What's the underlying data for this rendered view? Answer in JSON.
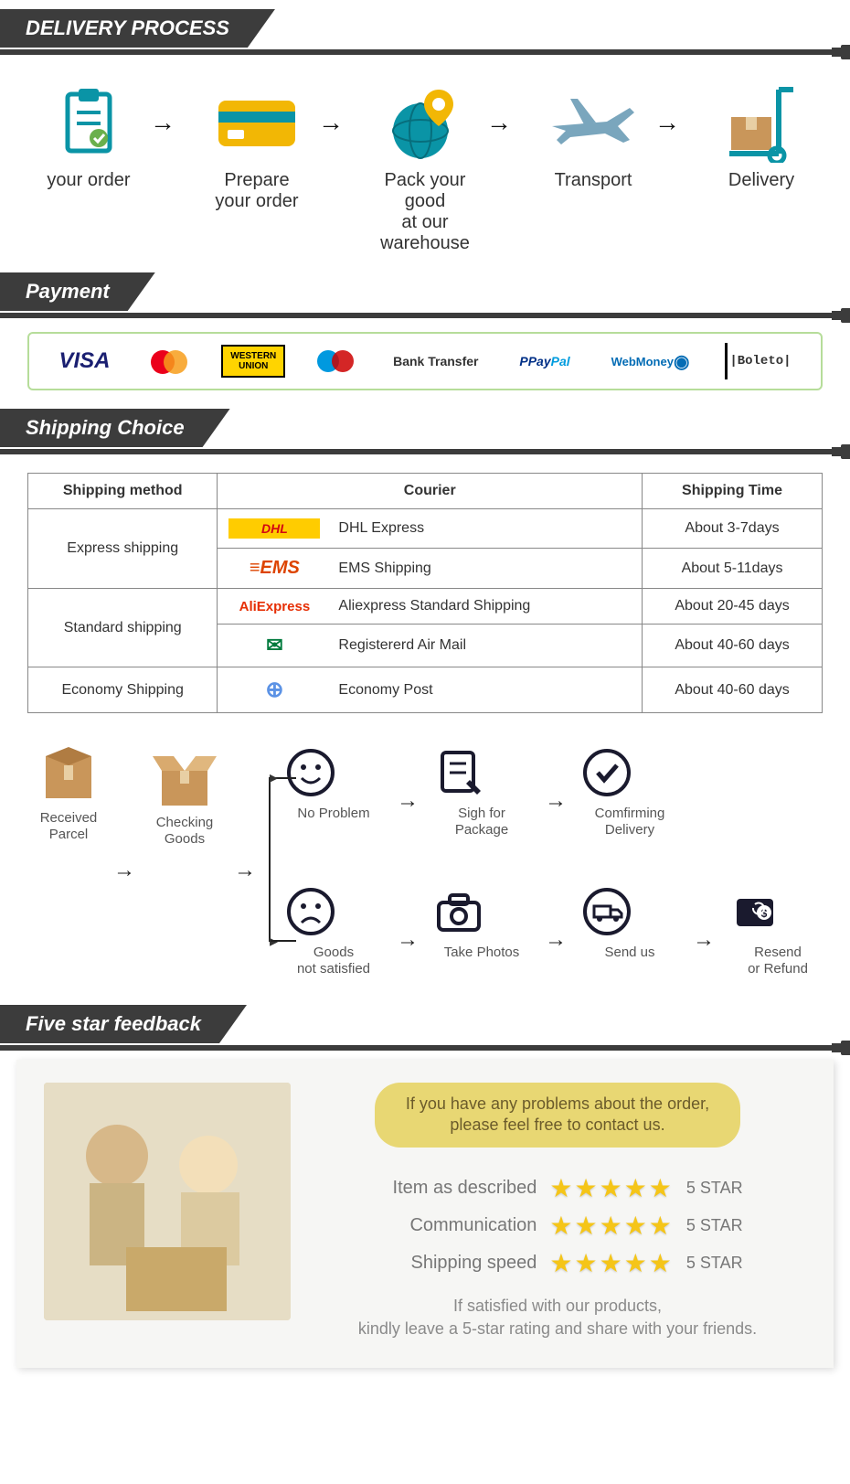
{
  "colors": {
    "header_bg": "#3c3c3c",
    "accent_teal": "#0a94a6",
    "accent_yellow": "#f2b705",
    "star": "#f5c518",
    "pill_bg": "#e8d773",
    "pill_text": "#6b5b2b",
    "border_green": "#b6dd9a",
    "text_grey": "#777"
  },
  "sections": {
    "delivery": {
      "title": "DELIVERY PROCESS"
    },
    "payment": {
      "title": "Payment"
    },
    "shipping": {
      "title": "Shipping Choice"
    },
    "feedback": {
      "title": "Five star feedback"
    }
  },
  "process_steps": [
    {
      "label": "your order",
      "icon": "clipboard"
    },
    {
      "label": "Prepare\nyour order",
      "icon": "card"
    },
    {
      "label": "Pack your good\nat our warehouse",
      "icon": "globe-pin"
    },
    {
      "label": "Transport",
      "icon": "plane"
    },
    {
      "label": "Delivery",
      "icon": "handtruck"
    }
  ],
  "payment_methods": [
    {
      "name": "VISA",
      "style": "visa"
    },
    {
      "name": "MasterCard",
      "style": "mc"
    },
    {
      "name": "WESTERN UNION",
      "style": "wu"
    },
    {
      "name": "Maestro",
      "style": "maestro"
    },
    {
      "name": "Bank Transfer",
      "style": "plain"
    },
    {
      "name": "PayPal",
      "style": "paypal"
    },
    {
      "name": "WebMoney",
      "style": "webmoney"
    },
    {
      "name": "|Boleto|",
      "style": "boleto"
    }
  ],
  "shipping_table": {
    "headers": [
      "Shipping method",
      "Courier",
      "Shipping Time"
    ],
    "rows": [
      {
        "method": "Express shipping",
        "courier": "DHL Express",
        "logo": "dhl",
        "time": "About 3-7days",
        "rowspan": 2,
        "first": true
      },
      {
        "method": "",
        "courier": "EMS Shipping",
        "logo": "ems",
        "time": "About 5-11days"
      },
      {
        "method": "Standard shipping",
        "courier": "Aliexpress Standard Shipping",
        "logo": "aliexp",
        "time": "About 20-45 days",
        "rowspan": 2,
        "first": true
      },
      {
        "method": "",
        "courier": "Registererd Air Mail",
        "logo": "post",
        "time": "About 40-60 days"
      },
      {
        "method": "Economy Shipping",
        "courier": "Economy Post",
        "logo": "un",
        "time": "About 40-60 days",
        "rowspan": 1,
        "first": true
      }
    ],
    "logos": {
      "dhl": "DHL",
      "ems": "≡EMS",
      "aliexp": "AliExpress",
      "post": "✉",
      "un": "⊕"
    }
  },
  "receive_flow": {
    "left": [
      {
        "label": "Received\nParcel",
        "icon": "box-closed"
      },
      {
        "label": "Checking\nGoods",
        "icon": "box-open"
      }
    ],
    "top": [
      {
        "label": "No Problem",
        "icon": "smile"
      },
      {
        "label": "Sigh for\nPackage",
        "icon": "sign"
      },
      {
        "label": "Comfirming\nDelivery",
        "icon": "check-circle"
      }
    ],
    "bottom": [
      {
        "label": "Goods\nnot satisfied",
        "icon": "sad"
      },
      {
        "label": "Take Photos",
        "icon": "camera"
      },
      {
        "label": "Send us",
        "icon": "truck-circle"
      },
      {
        "label": "Resend\nor Refund",
        "icon": "wallet"
      }
    ]
  },
  "feedback": {
    "pill_line1": "If you have any problems about the order,",
    "pill_line2": "please feel free to contact us.",
    "ratings": [
      {
        "label": "Item as described",
        "tag": "5 STAR"
      },
      {
        "label": "Communication",
        "tag": "5 STAR"
      },
      {
        "label": "Shipping speed",
        "tag": "5 STAR"
      }
    ],
    "star_glyphs": "★★★★★",
    "note_line1": "If satisfied with our products,",
    "note_line2": "kindly leave a 5-star rating and share with your friends."
  }
}
